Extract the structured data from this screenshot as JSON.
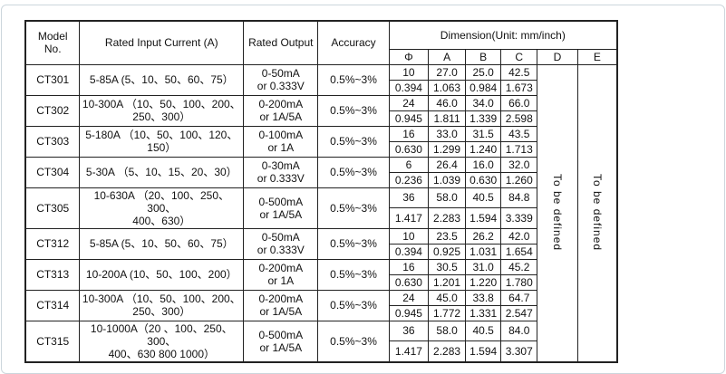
{
  "table": {
    "headers": {
      "model": "Model No.",
      "input": "Rated  Input Current (A)",
      "output": "Rated Output",
      "accuracy": "Accuracy",
      "dimension": "Dimension(Unit: mm/inch)",
      "dim_cols": [
        "Φ",
        "A",
        "B",
        "C",
        "D",
        "E"
      ]
    },
    "d_note": "To be defined",
    "e_note": "To be defined",
    "rows": [
      {
        "model": "CT301",
        "input": "5-85A  (5、10、50、60、75）",
        "output": "0-50mA\nor  0.333V",
        "accuracy": "0.5%~3%",
        "mm": [
          "10",
          "27.0",
          "25.0",
          "42.5"
        ],
        "inch": [
          "0.394",
          "1.063",
          "0.984",
          "1.673"
        ]
      },
      {
        "model": "CT302",
        "input": "10-300A （10、50、100、200、\n250、300）",
        "output": "0-200mA\nor  1A/5A",
        "accuracy": "0.5%~3%",
        "mm": [
          "24",
          "46.0",
          "34.0",
          "66.0"
        ],
        "inch": [
          "0.945",
          "1.811",
          "1.339",
          "2.598"
        ]
      },
      {
        "model": "CT303",
        "input": "5-180A （10、50、100、120、\n150）",
        "output": "0-100mA\nor  1A",
        "accuracy": "0.5%~3%",
        "mm": [
          "16",
          "33.0",
          "31.5",
          "43.5"
        ],
        "inch": [
          "0.630",
          "1.299",
          "1.240",
          "1.713"
        ]
      },
      {
        "model": "CT304",
        "input": "5-30A （5、10、15、20、30）",
        "output": "0-30mA\nor  0.333V",
        "accuracy": "0.5%~3%",
        "mm": [
          "6",
          "26.4",
          "16.0",
          "32.0"
        ],
        "inch": [
          "0.236",
          "1.039",
          "0.630",
          "1.260"
        ]
      },
      {
        "model": "CT305",
        "input": "10-630A （20、100、250、300、\n400、630）",
        "output": "0-500mA\nor  1A/5A",
        "accuracy": "0.5%~3%",
        "mm": [
          "36",
          "58.0",
          "40.5",
          "84.8"
        ],
        "inch": [
          "1.417",
          "2.283",
          "1.594",
          "3.339"
        ]
      },
      {
        "model": "CT312",
        "input": "5-85A  (5、10、50、60、75）",
        "output": "0-50mA\nor  0.333V",
        "accuracy": "0.5%~3%",
        "mm": [
          "10",
          "23.5",
          "26.2",
          "42.0"
        ],
        "inch": [
          "0.394",
          "0.925",
          "1.031",
          "1.654"
        ]
      },
      {
        "model": "CT313",
        "input": "10-200A  (10、50、100、200）",
        "output": "0-200mA\nor  1A",
        "accuracy": "0.5%~3%",
        "mm": [
          "16",
          "30.5",
          "31.0",
          "45.2"
        ],
        "inch": [
          "0.630",
          "1.201",
          "1.220",
          "1.780"
        ]
      },
      {
        "model": "CT314",
        "input": "10-300A （10、50、100、200、\n250、300）",
        "output": "0-200mA\nor  1A/5A",
        "accuracy": "0.5%~3%",
        "mm": [
          "24",
          "45.0",
          "33.8",
          "64.7"
        ],
        "inch": [
          "0.945",
          "1.772",
          "1.331",
          "2.547"
        ]
      },
      {
        "model": "CT315",
        "input": "10-1000A（20 、100、250、300、\n400、630 800 1000）",
        "output": "0-500mA\nor 1A/5A",
        "accuracy": "0.5%~3%",
        "mm": [
          "36",
          "58.0",
          "40.5",
          "84.0"
        ],
        "inch": [
          "1.417",
          "2.283",
          "1.594",
          "3.307"
        ]
      }
    ]
  }
}
